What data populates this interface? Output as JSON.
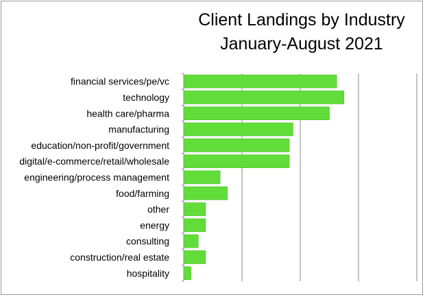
{
  "chart_data": {
    "type": "bar",
    "orientation": "horizontal",
    "title": [
      "Client Landings by Industry",
      "January-August 2021"
    ],
    "categories": [
      "financial services/pe/vc",
      "technology",
      "health care/pharma",
      "manufacturing",
      "education/non-profit/government",
      "digital/e-commerce/retail/wholesale",
      "engineering/process management",
      "food/farming",
      "other",
      "energy",
      "consulting",
      "construction/real estate",
      "hospitality"
    ],
    "values": [
      21,
      22,
      20,
      15,
      14.5,
      14.5,
      5,
      6,
      3,
      3,
      2,
      3,
      1
    ],
    "xlim": [
      0,
      32
    ],
    "x_gridlines": [
      0,
      8,
      16,
      24,
      32
    ],
    "tick_labels_shown": false,
    "grid": true,
    "bar_color": "#61dd3a",
    "gridline_color": "#888888"
  }
}
